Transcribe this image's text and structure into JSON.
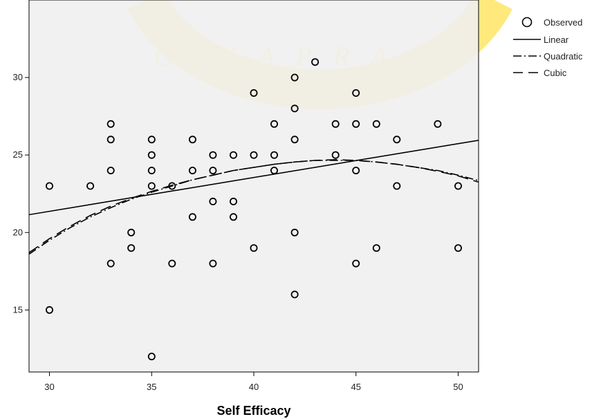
{
  "chart_data": {
    "type": "scatter",
    "title": "",
    "xlabel": "Self Efficacy",
    "ylabel": "",
    "xlim": [
      29,
      51
    ],
    "ylim": [
      11,
      35
    ],
    "x_ticks": [
      "30",
      "35",
      "40",
      "45",
      "50"
    ],
    "y_ticks": [
      "15",
      "20",
      "25",
      "30"
    ],
    "grid": false,
    "legend_position": "right",
    "legend": {
      "observed": "Observed",
      "linear": "Linear",
      "quadratic": "Quadratic",
      "cubic": "Cubic"
    },
    "observed": [
      [
        30,
        23
      ],
      [
        30,
        15
      ],
      [
        32,
        23
      ],
      [
        33,
        27
      ],
      [
        33,
        26
      ],
      [
        33,
        24
      ],
      [
        33,
        18
      ],
      [
        34,
        20
      ],
      [
        34,
        19
      ],
      [
        35,
        26
      ],
      [
        35,
        25
      ],
      [
        35,
        24
      ],
      [
        35,
        23
      ],
      [
        35,
        12
      ],
      [
        36,
        23
      ],
      [
        36,
        18
      ],
      [
        37,
        26
      ],
      [
        37,
        24
      ],
      [
        37,
        21
      ],
      [
        38,
        25
      ],
      [
        38,
        24
      ],
      [
        38,
        22
      ],
      [
        38,
        18
      ],
      [
        39,
        25
      ],
      [
        39,
        22
      ],
      [
        39,
        21
      ],
      [
        40,
        29
      ],
      [
        40,
        25
      ],
      [
        40,
        19
      ],
      [
        41,
        27
      ],
      [
        41,
        25
      ],
      [
        41,
        24
      ],
      [
        42,
        30
      ],
      [
        42,
        28
      ],
      [
        42,
        26
      ],
      [
        42,
        20
      ],
      [
        42,
        16
      ],
      [
        43,
        31
      ],
      [
        44,
        27
      ],
      [
        44,
        25
      ],
      [
        45,
        29
      ],
      [
        45,
        27
      ],
      [
        45,
        24
      ],
      [
        45,
        18
      ],
      [
        46,
        27
      ],
      [
        46,
        19
      ],
      [
        47,
        26
      ],
      [
        47,
        23
      ],
      [
        49,
        27
      ],
      [
        50,
        23
      ],
      [
        50,
        19
      ]
    ],
    "linear_fit": [
      [
        29,
        21.15
      ],
      [
        51,
        25.95
      ]
    ],
    "quadratic_fit": [
      [
        29,
        18.6
      ],
      [
        30,
        19.5
      ],
      [
        31,
        20.3
      ],
      [
        32,
        21.0
      ],
      [
        33,
        21.6
      ],
      [
        34,
        22.15
      ],
      [
        35,
        22.6
      ],
      [
        36,
        23.0
      ],
      [
        37,
        23.4
      ],
      [
        38,
        23.7
      ],
      [
        39,
        24.0
      ],
      [
        40,
        24.2
      ],
      [
        41,
        24.4
      ],
      [
        42,
        24.55
      ],
      [
        43,
        24.65
      ],
      [
        44,
        24.65
      ],
      [
        45,
        24.65
      ],
      [
        46,
        24.55
      ],
      [
        47,
        24.4
      ],
      [
        48,
        24.2
      ],
      [
        49,
        24.0
      ],
      [
        50,
        23.7
      ],
      [
        51,
        23.35
      ]
    ],
    "cubic_fit": [
      [
        29,
        18.7
      ],
      [
        30,
        19.6
      ],
      [
        31,
        20.4
      ],
      [
        32,
        21.1
      ],
      [
        33,
        21.7
      ],
      [
        34,
        22.2
      ],
      [
        35,
        22.65
      ],
      [
        36,
        23.05
      ],
      [
        37,
        23.4
      ],
      [
        38,
        23.7
      ],
      [
        39,
        24.0
      ],
      [
        40,
        24.2
      ],
      [
        41,
        24.4
      ],
      [
        42,
        24.55
      ],
      [
        43,
        24.65
      ],
      [
        44,
        24.7
      ],
      [
        45,
        24.65
      ],
      [
        46,
        24.55
      ],
      [
        47,
        24.4
      ],
      [
        48,
        24.2
      ],
      [
        49,
        23.95
      ],
      [
        50,
        23.65
      ],
      [
        51,
        23.25
      ]
    ]
  },
  "colors": {
    "plot_background": "#f0f0f0",
    "page_background": "#ffffff",
    "marker_stroke": "#000000",
    "line": "#000000"
  },
  "watermark": {
    "text": "GIJAPRANA",
    "color": "#ffe566"
  }
}
